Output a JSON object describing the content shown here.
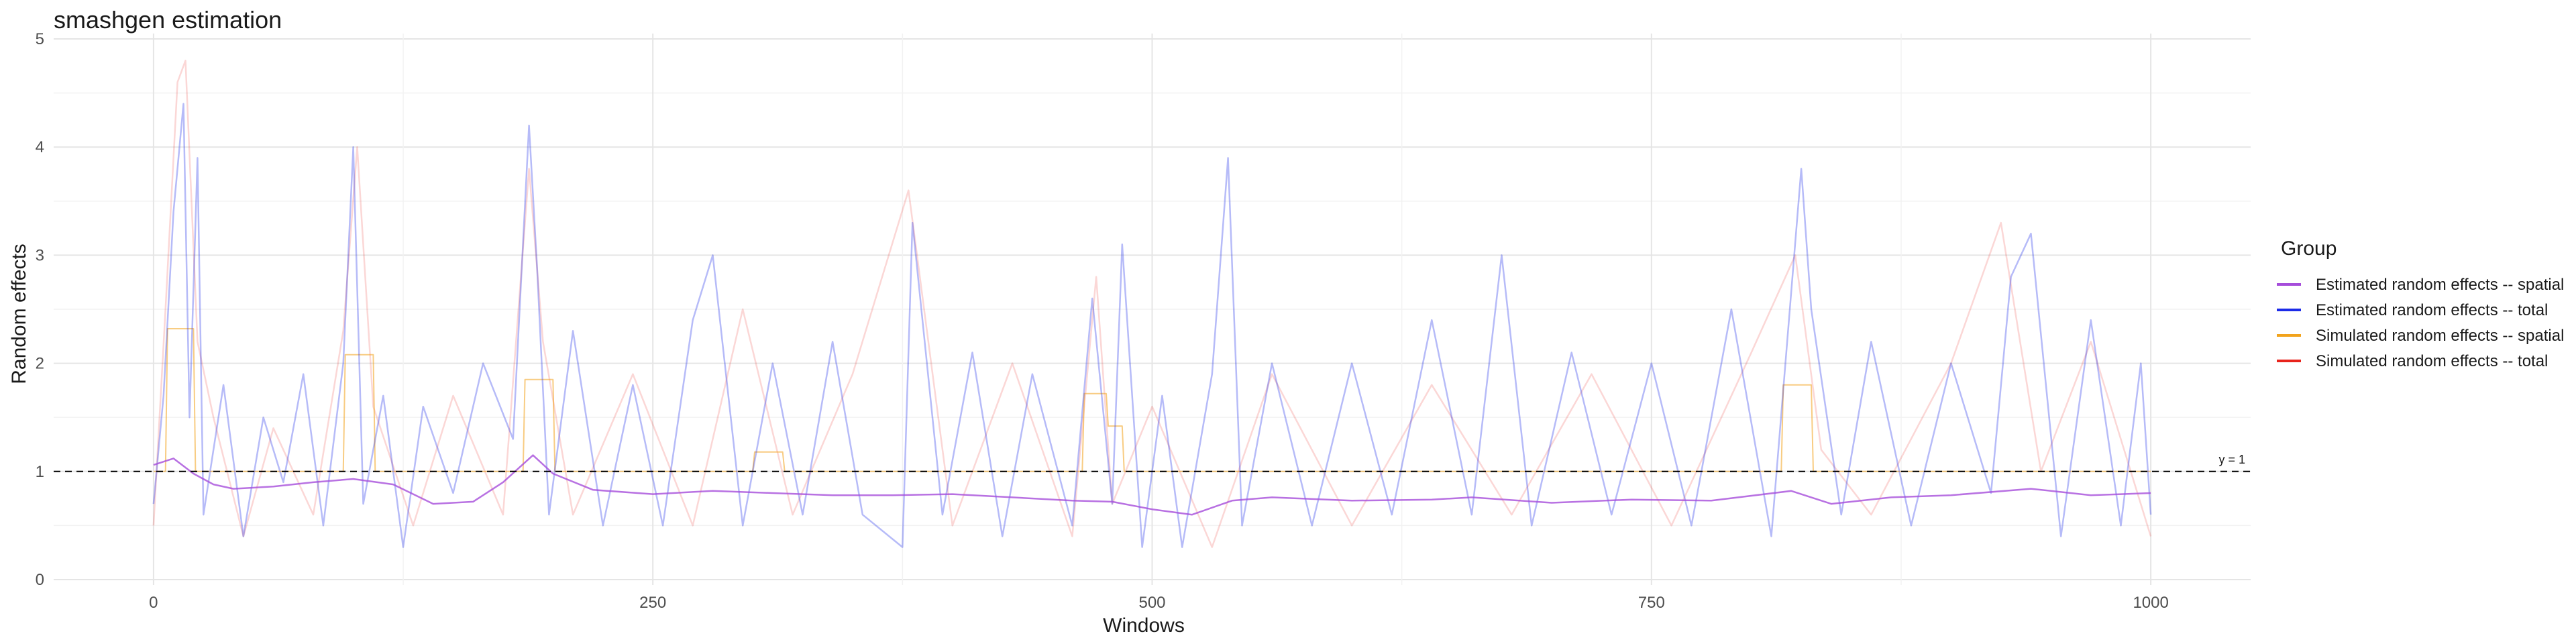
{
  "chart_data": {
    "type": "line",
    "title": "smashgen estimation",
    "xlabel": "Windows",
    "ylabel": "Random effects",
    "xlim": [
      -50,
      1050
    ],
    "ylim": [
      -0.05,
      5.05
    ],
    "x_ticks": [
      0,
      250,
      500,
      750,
      1000
    ],
    "y_ticks": [
      0,
      1,
      2,
      3,
      4,
      5
    ],
    "grid": true,
    "legend_position": "right",
    "legend_title": "Group",
    "reference_line": {
      "y": 1,
      "label": "y = 1",
      "style": "dashed"
    },
    "series": [
      {
        "name": "Estimated random effects -- spatial",
        "color": "#A64DDB",
        "x": [
          0,
          10,
          20,
          30,
          40,
          60,
          80,
          100,
          120,
          140,
          160,
          175,
          190,
          200,
          220,
          250,
          280,
          310,
          340,
          370,
          400,
          430,
          460,
          480,
          500,
          520,
          540,
          560,
          600,
          640,
          660,
          700,
          740,
          780,
          820,
          840,
          870,
          900,
          940,
          970,
          1000
        ],
        "values": [
          1.06,
          1.12,
          0.98,
          0.88,
          0.84,
          0.86,
          0.9,
          0.93,
          0.88,
          0.7,
          0.72,
          0.9,
          1.15,
          0.98,
          0.83,
          0.79,
          0.82,
          0.8,
          0.78,
          0.78,
          0.79,
          0.76,
          0.73,
          0.72,
          0.65,
          0.6,
          0.73,
          0.76,
          0.73,
          0.74,
          0.76,
          0.71,
          0.74,
          0.73,
          0.82,
          0.7,
          0.76,
          0.78,
          0.84,
          0.78,
          0.8
        ]
      },
      {
        "name": "Estimated random effects -- total",
        "color": "#1C2BE8",
        "x": [
          0,
          5,
          10,
          15,
          18,
          22,
          25,
          35,
          45,
          55,
          65,
          75,
          85,
          95,
          100,
          105,
          115,
          125,
          135,
          150,
          165,
          180,
          188,
          192,
          198,
          210,
          225,
          240,
          255,
          270,
          280,
          295,
          310,
          325,
          340,
          355,
          375,
          380,
          395,
          410,
          425,
          440,
          460,
          470,
          480,
          485,
          495,
          505,
          515,
          530,
          538,
          545,
          560,
          580,
          600,
          620,
          640,
          660,
          675,
          690,
          710,
          730,
          750,
          770,
          790,
          810,
          825,
          830,
          845,
          860,
          880,
          900,
          920,
          930,
          940,
          955,
          970,
          985,
          995,
          1000
        ],
        "values": [
          0.7,
          1.7,
          3.4,
          4.4,
          1.5,
          3.9,
          0.6,
          1.8,
          0.4,
          1.5,
          0.9,
          1.9,
          0.5,
          2.0,
          4.0,
          0.7,
          1.7,
          0.3,
          1.6,
          0.8,
          2.0,
          1.3,
          4.2,
          2.9,
          0.6,
          2.3,
          0.5,
          1.8,
          0.5,
          2.4,
          3.0,
          0.5,
          2.0,
          0.6,
          2.2,
          0.6,
          0.3,
          3.3,
          0.6,
          2.1,
          0.4,
          1.9,
          0.5,
          2.6,
          0.7,
          3.1,
          0.3,
          1.7,
          0.3,
          1.9,
          3.9,
          0.5,
          2.0,
          0.5,
          2.0,
          0.6,
          2.4,
          0.6,
          3.0,
          0.5,
          2.1,
          0.6,
          2.0,
          0.5,
          2.5,
          0.4,
          3.8,
          2.5,
          0.6,
          2.2,
          0.5,
          2.0,
          0.8,
          2.8,
          3.2,
          0.4,
          2.4,
          0.5,
          2.0,
          0.6
        ]
      },
      {
        "name": "Simulated random effects -- spatial",
        "color": "#F2A31C",
        "x": [
          0,
          6,
          7,
          20,
          21,
          40,
          41,
          95,
          96,
          110,
          111,
          185,
          186,
          200,
          201,
          300,
          301,
          315,
          316,
          465,
          466,
          477,
          478,
          485,
          486,
          530,
          531,
          815,
          816,
          830,
          831,
          1000
        ],
        "values": [
          1.0,
          1.0,
          2.32,
          2.32,
          1.0,
          1.0,
          1.0,
          1.0,
          2.08,
          2.08,
          1.0,
          1.0,
          1.85,
          1.85,
          1.0,
          1.0,
          1.18,
          1.18,
          1.0,
          1.0,
          1.72,
          1.72,
          1.42,
          1.42,
          1.0,
          1.0,
          1.0,
          1.0,
          1.8,
          1.8,
          1.0,
          1.0
        ]
      },
      {
        "name": "Simulated random effects -- total",
        "color": "#E8231C",
        "x": [
          0,
          6,
          12,
          16,
          22,
          30,
          45,
          60,
          80,
          95,
          102,
          110,
          130,
          150,
          175,
          188,
          195,
          210,
          240,
          270,
          295,
          320,
          350,
          378,
          400,
          430,
          460,
          472,
          480,
          500,
          530,
          560,
          600,
          640,
          680,
          720,
          760,
          800,
          822,
          835,
          860,
          900,
          925,
          945,
          970,
          1000
        ],
        "values": [
          0.5,
          2.5,
          4.6,
          4.8,
          2.2,
          1.5,
          0.4,
          1.4,
          0.6,
          2.3,
          4.0,
          1.6,
          0.5,
          1.7,
          0.6,
          3.8,
          2.2,
          0.6,
          1.9,
          0.5,
          2.5,
          0.6,
          1.9,
          3.6,
          0.5,
          2.0,
          0.4,
          2.8,
          0.7,
          1.6,
          0.3,
          1.9,
          0.5,
          1.8,
          0.6,
          1.9,
          0.5,
          2.1,
          3.0,
          1.2,
          0.6,
          2.0,
          3.3,
          1.0,
          2.2,
          0.4
        ]
      }
    ]
  }
}
